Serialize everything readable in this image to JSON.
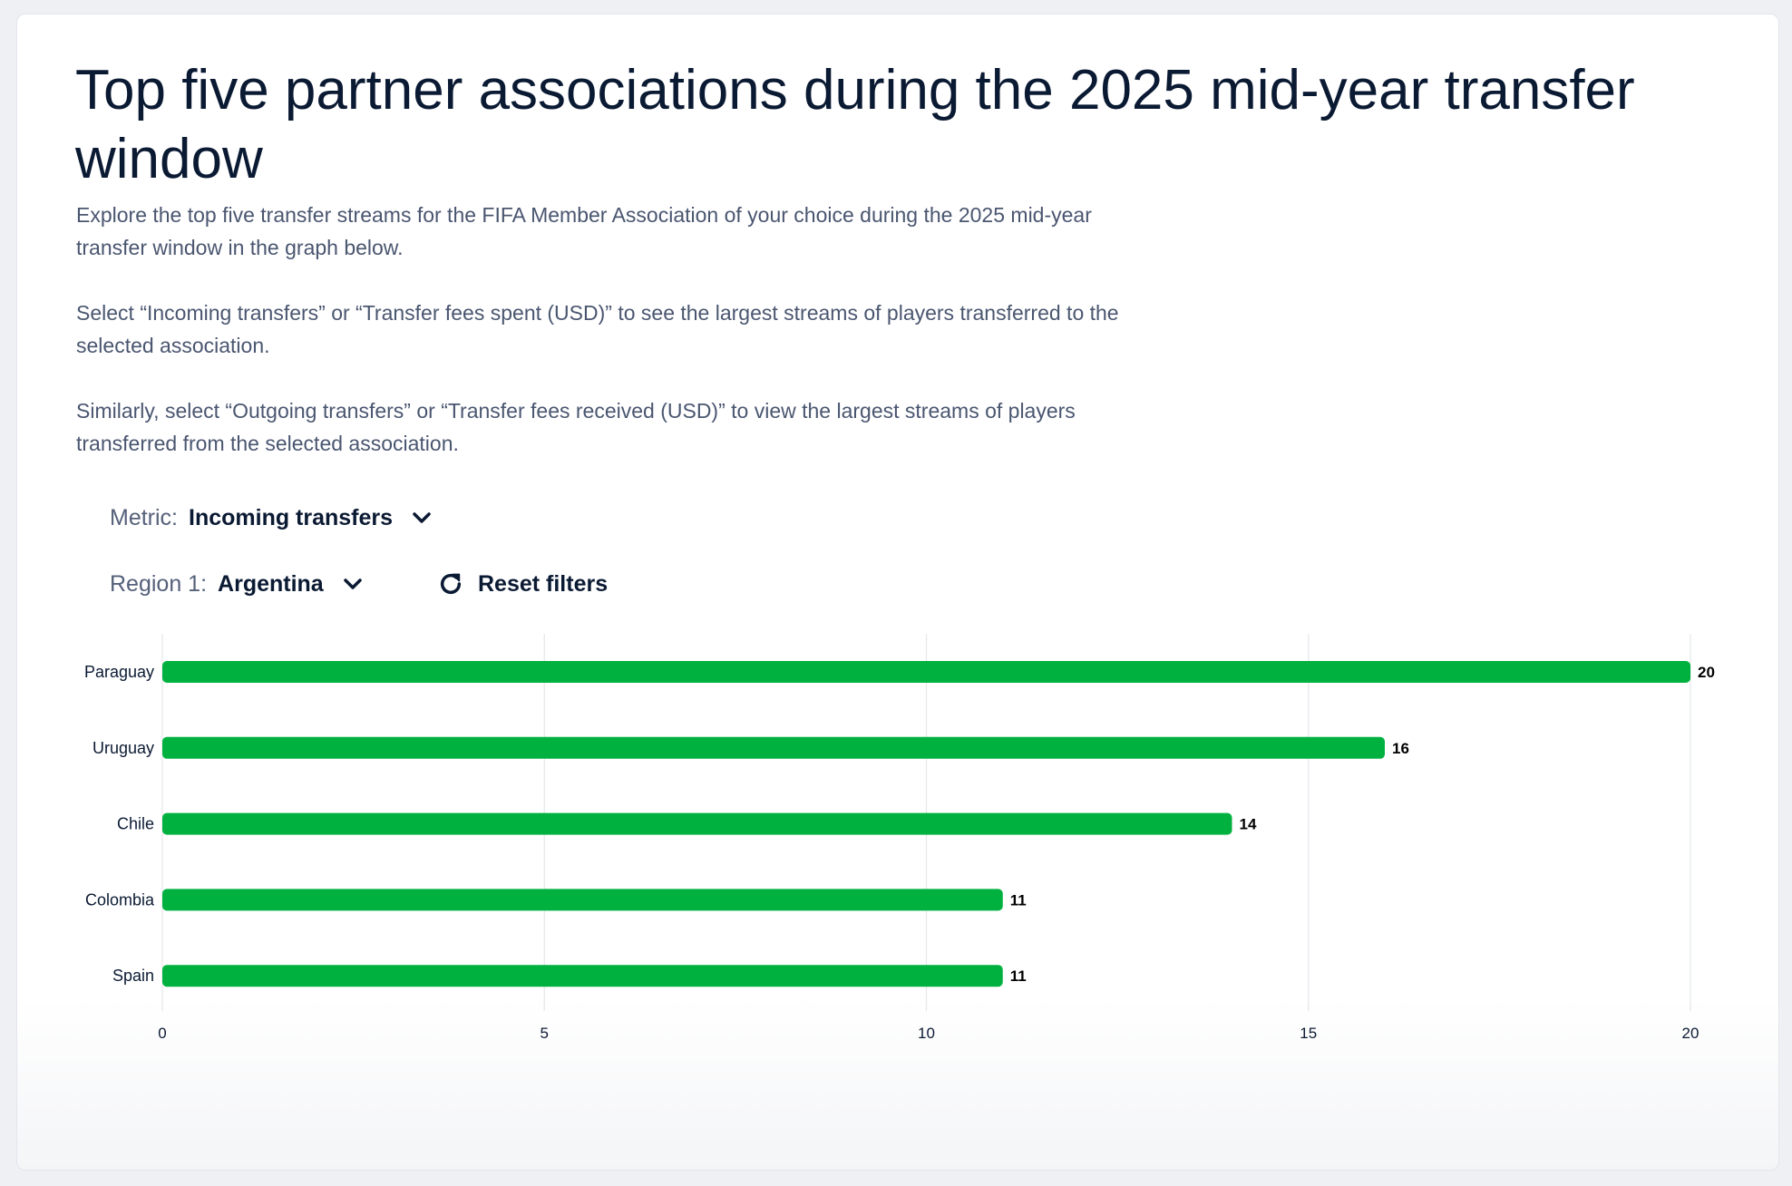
{
  "title": "Top five partner associations during the 2025 mid-year transfer window",
  "description": [
    "Explore the top five transfer streams for the FIFA Member Association of your choice during the 2025 mid-year transfer window in the graph below.",
    "Select “Incoming transfers” or “Transfer fees spent (USD)” to see the largest streams of players transferred to the selected association.",
    "Similarly, select “Outgoing transfers” or “Transfer fees received (USD)” to view the largest streams of players transferred from the selected association."
  ],
  "controls": {
    "metric_label": "Metric:",
    "metric_value": "Incoming transfers",
    "region_label": "Region 1:",
    "region_value": "Argentina",
    "reset_label": "Reset filters"
  },
  "colors": {
    "bar": "#00b140",
    "text": "#0b1a33",
    "grid": "#e6e8ec"
  },
  "chart_data": {
    "type": "bar",
    "orientation": "horizontal",
    "categories": [
      "Paraguay",
      "Uruguay",
      "Chile",
      "Colombia",
      "Spain"
    ],
    "values": [
      20,
      16,
      14,
      11,
      11
    ],
    "xlim": [
      0,
      20
    ],
    "xticks": [
      0,
      5,
      10,
      15,
      20
    ],
    "grid": true,
    "title": "",
    "xlabel": "",
    "ylabel": ""
  }
}
